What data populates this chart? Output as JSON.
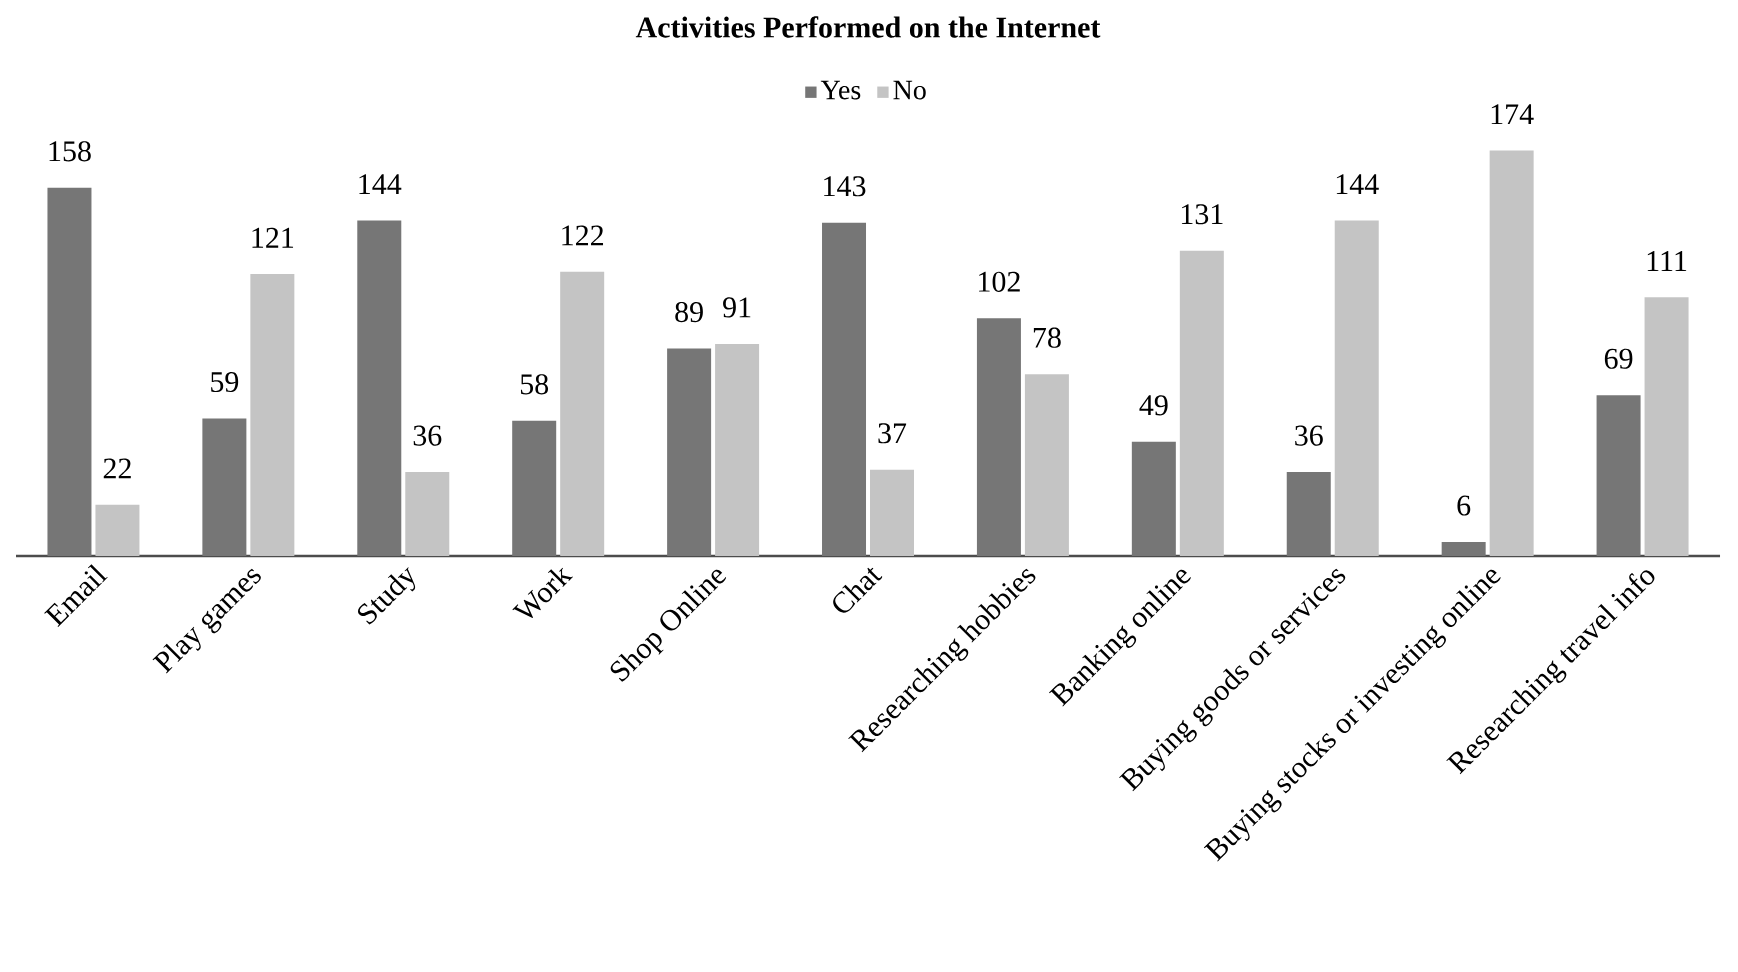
{
  "chart_data": {
    "type": "bar",
    "title": "Activities Performed on the Internet",
    "categories": [
      "Email",
      "Play games",
      "Study",
      "Work",
      "Shop Online",
      "Chat",
      "Researching hobbies",
      "Banking online",
      "Buying goods or services",
      "Buying stocks or investing online",
      "Researching travel info"
    ],
    "series": [
      {
        "name": "Yes",
        "color": "#767676",
        "values": [
          158,
          59,
          144,
          58,
          89,
          143,
          102,
          49,
          36,
          6,
          69
        ]
      },
      {
        "name": "No",
        "color": "#c4c4c4",
        "values": [
          22,
          121,
          36,
          122,
          91,
          37,
          78,
          131,
          144,
          174,
          111
        ]
      }
    ],
    "data_labels": true,
    "legend": "top"
  }
}
